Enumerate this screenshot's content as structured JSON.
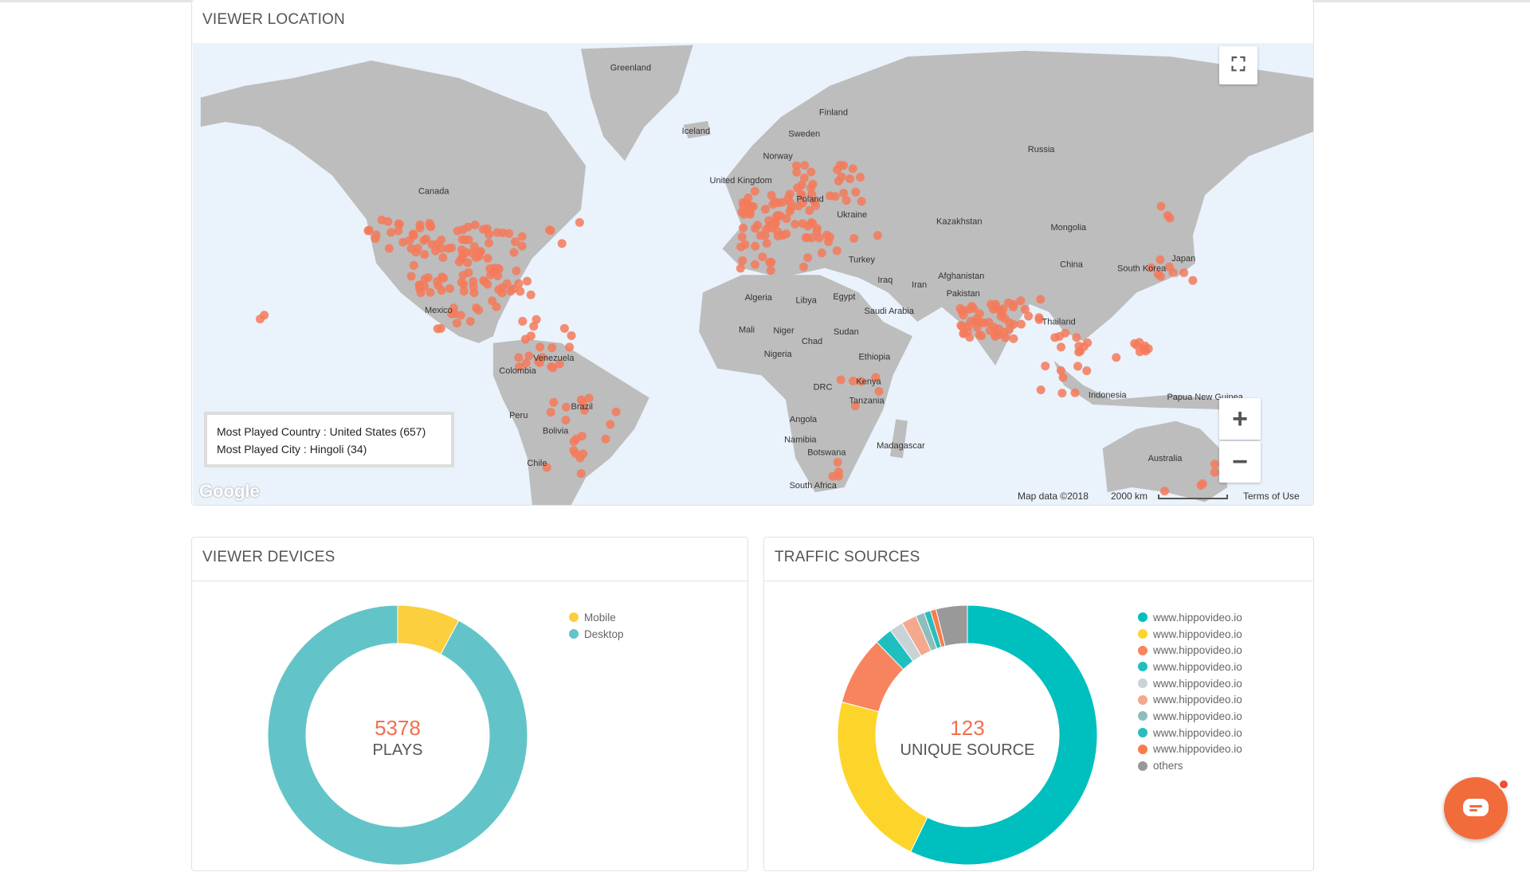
{
  "viewer_location": {
    "title": "VIEWER LOCATION",
    "most_played_country": "Most Played Country : United States (657)",
    "most_played_city": "Most Played City : Hingoli (34)",
    "google_logo": "Google",
    "map_data": "Map data ©2018",
    "scale": "2000 km",
    "terms": "Terms of Use",
    "zoom_in": "+",
    "zoom_out": "−",
    "marker_color": "#f47a5a",
    "labels": [
      "Greenland",
      "Iceland",
      "Finland",
      "Sweden",
      "Norway",
      "Russia",
      "United Kingdom",
      "Poland",
      "Ukraine",
      "Canada",
      "Kazakhstan",
      "Mongolia",
      "China",
      "Japan",
      "South Korea",
      "Turkey",
      "Iraq",
      "Iran",
      "Afghanistan",
      "Pakistan",
      "Algeria",
      "Libya",
      "Egypt",
      "Saudi Arabia",
      "Thailand",
      "Mexico",
      "Mali",
      "Niger",
      "Chad",
      "Sudan",
      "Ethiopia",
      "Nigeria",
      "Venezuela",
      "Colombia",
      "Kenya",
      "DRC",
      "Tanzania",
      "Indonesia",
      "Papua New Guinea",
      "Peru",
      "Brazil",
      "Bolivia",
      "Angola",
      "Namibia",
      "Botswana",
      "Madagascar",
      "Australia",
      "Chile",
      "South Africa"
    ]
  },
  "viewer_devices": {
    "title": "VIEWER DEVICES",
    "total": "5378",
    "total_label": "PLAYS",
    "segments": [
      {
        "name": "Mobile",
        "share": 7.8,
        "color": "#fbcf3d"
      },
      {
        "name": "Desktop",
        "share": 92.2,
        "color": "#62c4c8"
      }
    ]
  },
  "traffic_sources": {
    "title": "TRAFFIC SOURCES",
    "total": "123",
    "total_label": "UNIQUE SOURCE",
    "segments": [
      {
        "name": "www.hippovideo.io",
        "share": 57.2,
        "color": "#00bfbf"
      },
      {
        "name": "www.hippovideo.io",
        "share": 21.9,
        "color": "#fdd52a"
      },
      {
        "name": "www.hippovideo.io",
        "share": 8.6,
        "color": "#f7845e"
      },
      {
        "name": "www.hippovideo.io",
        "share": 2.2,
        "color": "#20bfbf"
      },
      {
        "name": "www.hippovideo.io",
        "share": 1.7,
        "color": "#c9d3d6"
      },
      {
        "name": "www.hippovideo.io",
        "share": 1.9,
        "color": "#f4a98f"
      },
      {
        "name": "www.hippovideo.io",
        "share": 1.1,
        "color": "#8fbdbd"
      },
      {
        "name": "www.hippovideo.io",
        "share": 0.8,
        "color": "#2bbcbc"
      },
      {
        "name": "www.hippovideo.io",
        "share": 0.7,
        "color": "#fa7b4b"
      },
      {
        "name": "others",
        "share": 3.9,
        "color": "#999999"
      }
    ]
  }
}
